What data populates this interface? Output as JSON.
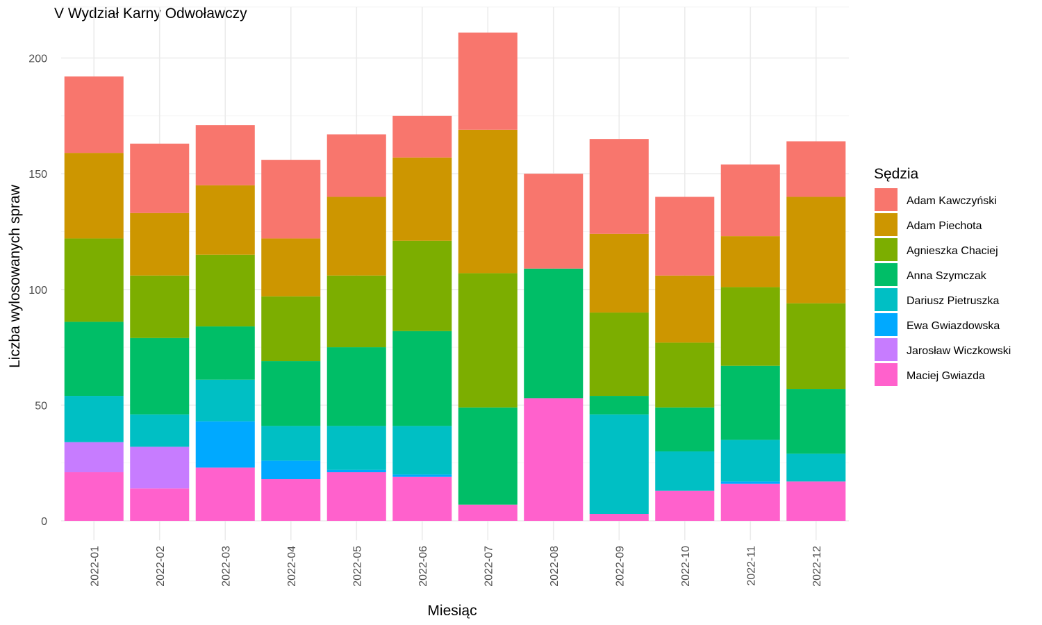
{
  "chart_data": {
    "type": "bar",
    "stacked": true,
    "title": "V Wydział Karny Odwoławczy",
    "xlabel": "Miesiąc",
    "ylabel": "Liczba wylosowanych spraw",
    "ylim": [
      0,
      215
    ],
    "yticks": [
      0,
      50,
      100,
      150,
      200
    ],
    "grid": true,
    "legend_position": "right",
    "legend_title": "Sędzia",
    "categories": [
      "2022-01",
      "2022-02",
      "2022-03",
      "2022-04",
      "2022-05",
      "2022-06",
      "2022-07",
      "2022-08",
      "2022-09",
      "2022-10",
      "2022-11",
      "2022-12"
    ],
    "series": [
      {
        "name": "Adam Kawczyński",
        "color": "#F8766D",
        "values": [
          33,
          30,
          26,
          34,
          27,
          18,
          42,
          41,
          41,
          34,
          31,
          24
        ]
      },
      {
        "name": "Adam Piechota",
        "color": "#CD9600",
        "values": [
          37,
          27,
          30,
          25,
          34,
          36,
          62,
          0,
          34,
          29,
          22,
          46
        ]
      },
      {
        "name": "Agnieszka Chaciej",
        "color": "#7CAE00",
        "values": [
          36,
          27,
          31,
          28,
          31,
          39,
          58,
          0,
          36,
          28,
          34,
          37
        ]
      },
      {
        "name": "Anna Szymczak",
        "color": "#00BE67",
        "values": [
          32,
          33,
          23,
          28,
          34,
          41,
          42,
          56,
          8,
          19,
          32,
          28
        ]
      },
      {
        "name": "Dariusz Pietruszka",
        "color": "#00BFC4",
        "values": [
          20,
          14,
          18,
          15,
          19,
          21,
          0,
          0,
          43,
          17,
          18,
          12
        ]
      },
      {
        "name": "Ewa Gwiazdowska",
        "color": "#00A9FF",
        "values": [
          0,
          0,
          20,
          8,
          1,
          1,
          0,
          0,
          0,
          0,
          1,
          0
        ]
      },
      {
        "name": "Jarosław Wiczkowski",
        "color": "#C77CFF",
        "values": [
          13,
          18,
          0,
          0,
          0,
          0,
          0,
          0,
          0,
          0,
          0,
          0
        ]
      },
      {
        "name": "Maciej Gwiazda",
        "color": "#FF61CC",
        "values": [
          21,
          14,
          23,
          18,
          21,
          19,
          7,
          53,
          3,
          13,
          16,
          17
        ]
      }
    ]
  }
}
